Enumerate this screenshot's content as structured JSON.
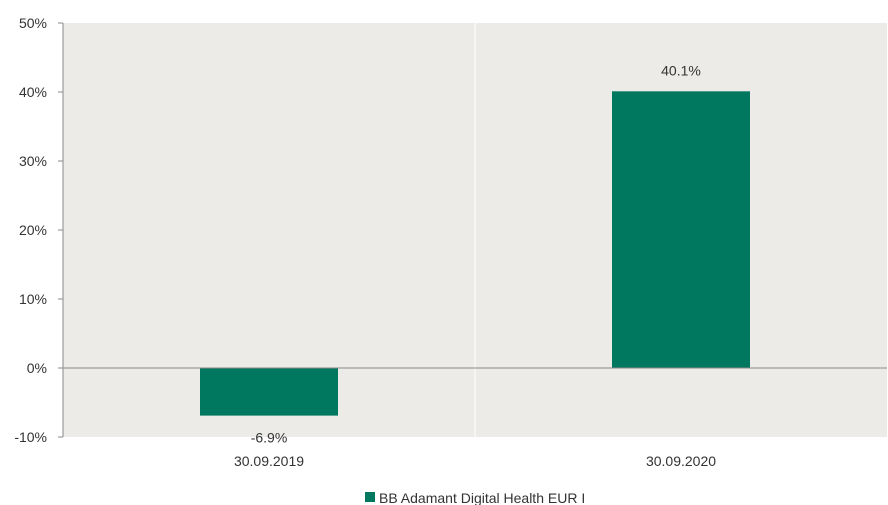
{
  "chart_data": {
    "type": "bar",
    "categories": [
      "30.09.2019",
      "30.09.2020"
    ],
    "series": [
      {
        "name": "BB Adamant Digital Health EUR I",
        "values": [
          -6.9,
          40.1
        ]
      }
    ],
    "data_labels": [
      "-6.9%",
      "40.1%"
    ],
    "y_ticks": [
      -10,
      0,
      10,
      20,
      30,
      40,
      50
    ],
    "y_tick_labels": [
      "-10%",
      "0%",
      "10%",
      "20%",
      "30%",
      "40%",
      "50%"
    ],
    "ylim": [
      -10,
      50
    ],
    "grid": "vertical separators only",
    "legend_position": "bottom-center",
    "colors": {
      "bar": "#00775f",
      "plot_background": "#ecebe7",
      "zero_line": "#8a8a8a",
      "separator": "#ffffff"
    }
  }
}
